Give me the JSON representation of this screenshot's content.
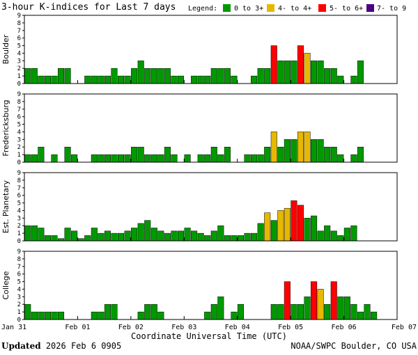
{
  "title": "3-hour K-indices for Last 7 days",
  "legend": {
    "label": "Legend:",
    "items": [
      {
        "label": "0 to 3+",
        "color": "#009900"
      },
      {
        "label": "4- to 4+",
        "color": "#e6b800"
      },
      {
        "label": "5- to 6+",
        "color": "#ff0000"
      },
      {
        "label": "7- to 9",
        "color": "#4b0082"
      }
    ]
  },
  "x_axis_label": "Coordinate Universal Time (UTC)",
  "footer": {
    "updated_label": "Updated",
    "updated_value": "2026 Feb  6 0905",
    "credit": "NOAA/SWPC Boulder, CO USA"
  },
  "chart_data": {
    "type": "bar",
    "x_ticks": [
      "Jan 31",
      "Feb 01",
      "Feb 02",
      "Feb 03",
      "Feb 04",
      "Feb 05",
      "Feb 06",
      "Feb 07"
    ],
    "y_ticks": [
      0,
      1,
      2,
      3,
      4,
      5,
      6,
      7,
      8,
      9
    ],
    "ylim": [
      0,
      9
    ],
    "bins_per_day": 8,
    "color_scale": [
      {
        "range": "0 to 3+",
        "color": "#009900"
      },
      {
        "range": "4- to 4+",
        "color": "#e6b800"
      },
      {
        "range": "5- to 6+",
        "color": "#ff0000"
      },
      {
        "range": "7- to 9",
        "color": "#4b0082"
      }
    ],
    "panels": [
      {
        "name": "Boulder",
        "values": [
          2,
          2,
          1,
          1,
          1,
          2,
          2,
          0,
          0,
          1,
          1,
          1,
          1,
          2,
          1,
          1,
          2,
          3,
          2,
          2,
          2,
          2,
          1,
          1,
          0,
          1,
          1,
          1,
          2,
          2,
          2,
          1,
          0,
          0,
          1,
          2,
          2,
          5,
          3,
          3,
          3,
          5,
          4,
          3,
          3,
          2,
          2,
          1,
          0,
          1,
          3,
          0,
          0,
          0,
          0,
          0
        ]
      },
      {
        "name": "Fredericksburg",
        "values": [
          1,
          1,
          2,
          0,
          1,
          0,
          2,
          1,
          0,
          0,
          1,
          1,
          1,
          1,
          1,
          1,
          2,
          2,
          1,
          1,
          1,
          2,
          1,
          0,
          1,
          0,
          1,
          1,
          2,
          1,
          2,
          0,
          0,
          1,
          1,
          1,
          2,
          4,
          2,
          3,
          3,
          4,
          4,
          3,
          3,
          2,
          2,
          1,
          0,
          1,
          2,
          0,
          0,
          0,
          0,
          0
        ]
      },
      {
        "name": "Est. Planetary",
        "values": [
          2,
          2,
          1.7,
          0.7,
          0.7,
          0.3,
          1.7,
          1.3,
          0.3,
          0.7,
          1.7,
          1,
          1.3,
          1,
          1,
          1.3,
          1.7,
          2.3,
          2.7,
          1.7,
          1.3,
          1,
          1.3,
          1.3,
          1.7,
          1.3,
          1,
          0.7,
          1.3,
          2,
          0.7,
          0.7,
          0.7,
          1,
          1,
          2.3,
          3.7,
          2.7,
          4,
          4.3,
          5.3,
          4.7,
          3,
          3.3,
          1.3,
          2,
          1.3,
          0.7,
          1.7,
          2,
          0,
          0,
          0,
          0,
          0,
          0
        ]
      },
      {
        "name": "College",
        "values": [
          2,
          1,
          1,
          1,
          1,
          1,
          0,
          0,
          0,
          0,
          1,
          1,
          2,
          2,
          0,
          0,
          0,
          1,
          2,
          2,
          1,
          0,
          0,
          0,
          0,
          0,
          0,
          1,
          2,
          3,
          0,
          1,
          2,
          0,
          0,
          0,
          0,
          2,
          2,
          5,
          2,
          2,
          3,
          5,
          4,
          2,
          5,
          3,
          3,
          2,
          1,
          2,
          1,
          0,
          0,
          0
        ]
      }
    ]
  }
}
